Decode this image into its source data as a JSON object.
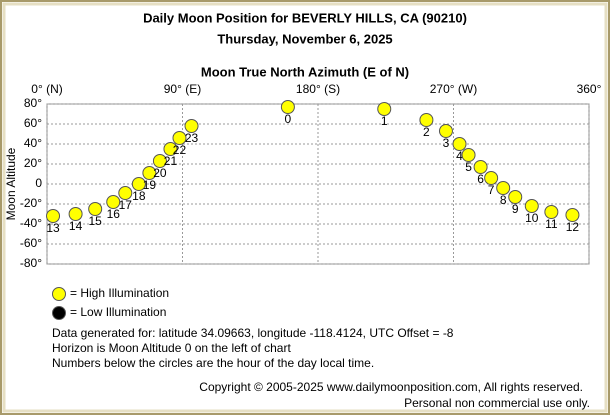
{
  "chart_data": {
    "type": "scatter",
    "title": "Daily Moon Position for BEVERLY HILLS, CA (90210)",
    "subtitle": "Thursday, November 6, 2025",
    "x_label": "Moon True North Azimuth (E of N)",
    "y_label": "Moon Altitude",
    "xlim": [
      0,
      360
    ],
    "xticks": [
      {
        "value": 0,
        "label": "0° (N)"
      },
      {
        "value": 90,
        "label": "90° (E)"
      },
      {
        "value": 180,
        "label": "180° (S)"
      },
      {
        "value": 270,
        "label": "270° (W)"
      },
      {
        "value": 360,
        "label": "360°"
      }
    ],
    "ylim": [
      -80,
      80
    ],
    "yticks": [
      {
        "value": 80,
        "label": "80°"
      },
      {
        "value": 60,
        "label": "60°"
      },
      {
        "value": 40,
        "label": "40°"
      },
      {
        "value": 20,
        "label": "20°"
      },
      0,
      {
        "value": -20,
        "label": "-20°"
      },
      {
        "value": -40,
        "label": "-40°"
      },
      {
        "value": -60,
        "label": "-60°"
      },
      {
        "value": -80,
        "label": "-80°"
      }
    ],
    "grid": true,
    "series": [
      {
        "name": "= High Illumination",
        "color": "#ffff00",
        "labels": [
          "0",
          "1",
          "2",
          "3",
          "4",
          "5",
          "6",
          "7",
          "8",
          "9",
          "10",
          "11",
          "12",
          "13",
          "14",
          "15",
          "16",
          "17",
          "18",
          "19",
          "20",
          "21",
          "22",
          "23"
        ],
        "x": [
          160,
          224,
          252,
          265,
          274,
          280,
          288,
          295,
          303,
          311,
          322,
          335,
          349,
          4,
          19,
          32,
          44,
          52,
          61,
          68,
          75,
          82,
          88,
          96
        ],
        "values": [
          77,
          75,
          64,
          53,
          40,
          29,
          17,
          6,
          -4,
          -13,
          -22,
          -28,
          -31,
          -32,
          -30,
          -25,
          -18,
          -9,
          0,
          11,
          23,
          35,
          46,
          58
        ]
      },
      {
        "name": "= Low Illumination",
        "color": "#000000",
        "x": [],
        "values": []
      }
    ],
    "notes": [
      "Data generated for: latitude 34.09663, longitude -118.4124, UTC Offset = -8",
      "Horizon is Moon Altitude 0 on the left of chart",
      "Numbers below the circles are the hour of the day local time."
    ],
    "copyright": [
      "Copyright © 2005-2025 www.dailymoonposition.com, All rights reserved.",
      "Personal non commercial use only."
    ]
  }
}
